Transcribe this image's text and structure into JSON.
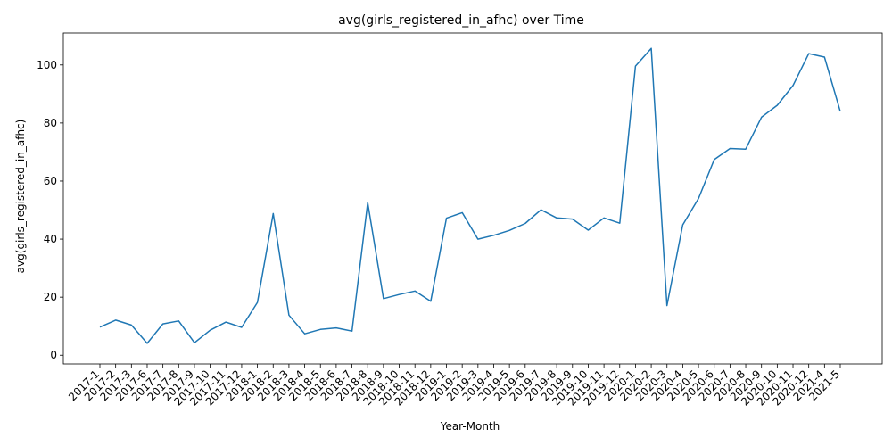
{
  "chart_data": {
    "type": "line",
    "title": "avg(girls_registered_in_afhc) over Time",
    "xlabel": "Year-Month",
    "ylabel": "avg(girls_registered_in_afhc)",
    "ylim": [
      -3,
      111
    ],
    "yticks": [
      0,
      20,
      40,
      60,
      80,
      100
    ],
    "grid": false,
    "line_color": "#1f77b4",
    "categories": [
      "2017-1",
      "2017-2",
      "2017-3",
      "2017-6",
      "2017-7",
      "2017-8",
      "2017-9",
      "2017-10",
      "2017-11",
      "2017-12",
      "2018-1",
      "2018-2",
      "2018-3",
      "2018-4",
      "2018-5",
      "2018-6",
      "2018-7",
      "2018-8",
      "2018-9",
      "2018-10",
      "2018-11",
      "2018-12",
      "2019-1",
      "2019-2",
      "2019-3",
      "2019-4",
      "2019-5",
      "2019-6",
      "2019-7",
      "2019-8",
      "2019-9",
      "2019-10",
      "2019-11",
      "2019-12",
      "2020-1",
      "2020-2",
      "2020-3",
      "2020-4",
      "2020-5",
      "2020-6",
      "2020-7",
      "2020-8",
      "2020-9",
      "2020-10",
      "2020-11",
      "2020-12",
      "2021-4",
      "2021-5"
    ],
    "values": [
      9.7,
      12.1,
      10.4,
      4.1,
      10.8,
      11.8,
      4.3,
      8.6,
      11.4,
      9.6,
      18.2,
      48.8,
      13.8,
      7.4,
      8.9,
      9.4,
      8.3,
      52.6,
      19.5,
      20.9,
      22.1,
      18.6,
      47.2,
      49.1,
      40.0,
      41.3,
      43.0,
      45.4,
      50.1,
      47.3,
      46.9,
      43.1,
      47.3,
      45.5,
      99.6,
      105.7,
      17.1,
      44.9,
      54.0,
      67.4,
      71.2,
      71.0,
      82.0,
      86.1,
      92.9,
      103.9,
      102.7,
      84.0
    ]
  }
}
